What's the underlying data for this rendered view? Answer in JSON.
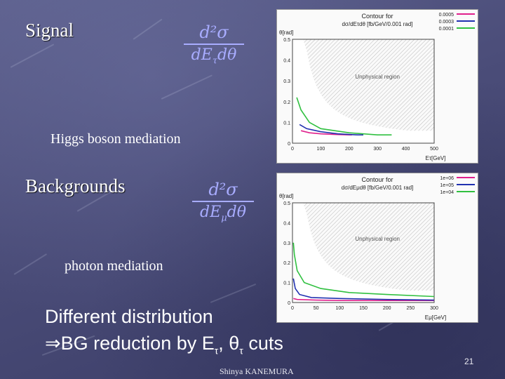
{
  "slide": {
    "signal_label": "Signal",
    "signal_formula_num": "d²σ",
    "signal_formula_den": "dE",
    "signal_formula_den_sub": "τ",
    "signal_formula_den_tail": "dθ",
    "higgs_caption": "Higgs boson mediation",
    "backgrounds_label": "Backgrounds",
    "bg_formula_num": "d²σ",
    "bg_formula_den": "dE",
    "bg_formula_den_sub": "μ",
    "bg_formula_den_tail": "dθ",
    "photon_caption": "photon mediation",
    "summary_line1": "Different distribution",
    "summary_line2": "⇒BG reduction by E",
    "summary_sub1": "τ",
    "summary_mid": ", θ",
    "summary_sub2": "τ",
    "summary_end": " cuts",
    "author": "Shinya KANEMURA",
    "page_number": "21"
  },
  "chart_data": [
    {
      "type": "line",
      "title": "Contour for",
      "subtitle": "dσ/dEτdθ [fb/GeV/0.001 rad]",
      "ylabel": "θ[rad]",
      "xlabel": "Eτ[GeV]",
      "region_label": "Unphysical region",
      "xlim": [
        0,
        500
      ],
      "ylim": [
        0,
        0.5
      ],
      "x_ticks": [
        "0",
        "100",
        "200",
        "300",
        "400",
        "500"
      ],
      "y_ticks": [
        "0",
        "0.1",
        "0.2",
        "0.3",
        "0.4",
        "0.5"
      ],
      "series": [
        {
          "name": "0.0005",
          "color": "#e0208c",
          "x": [
            30,
            60,
            100,
            150,
            200,
            210
          ],
          "y": [
            0.06,
            0.05,
            0.045,
            0.042,
            0.04,
            0.04
          ]
        },
        {
          "name": "0.0003",
          "color": "#2030b0",
          "x": [
            25,
            50,
            100,
            160,
            230,
            250
          ],
          "y": [
            0.09,
            0.07,
            0.055,
            0.045,
            0.04,
            0.04
          ]
        },
        {
          "name": "0.0001",
          "color": "#30c040",
          "x": [
            15,
            30,
            60,
            100,
            200,
            300,
            350
          ],
          "y": [
            0.22,
            0.16,
            0.1,
            0.07,
            0.05,
            0.04,
            0.04
          ]
        }
      ]
    },
    {
      "type": "line",
      "title": "Contour for",
      "subtitle": "dσ/dEμdθ [fb/GeV/0.001 rad]",
      "ylabel": "θ[rad]",
      "xlabel": "Eμ[GeV]",
      "region_label": "Unphysical region",
      "xlim": [
        0,
        300
      ],
      "ylim": [
        0,
        0.5
      ],
      "x_ticks": [
        "0",
        "50",
        "100",
        "150",
        "200",
        "250",
        "300"
      ],
      "y_ticks": [
        "0",
        "0.1",
        "0.2",
        "0.3",
        "0.4",
        "0.5"
      ],
      "series": [
        {
          "name": "1e+06",
          "color": "#e0208c",
          "x": [
            2,
            10,
            50,
            100,
            200,
            300
          ],
          "y": [
            0.02,
            0.015,
            0.012,
            0.01,
            0.01,
            0.01
          ]
        },
        {
          "name": "1e+05",
          "color": "#2030b0",
          "x": [
            2,
            6,
            15,
            40,
            100,
            200,
            300
          ],
          "y": [
            0.12,
            0.07,
            0.04,
            0.025,
            0.02,
            0.015,
            0.012
          ]
        },
        {
          "name": "1e+04",
          "color": "#30c040",
          "x": [
            2,
            4,
            10,
            25,
            60,
            120,
            200,
            300
          ],
          "y": [
            0.3,
            0.24,
            0.16,
            0.1,
            0.07,
            0.05,
            0.04,
            0.03
          ]
        }
      ]
    }
  ]
}
